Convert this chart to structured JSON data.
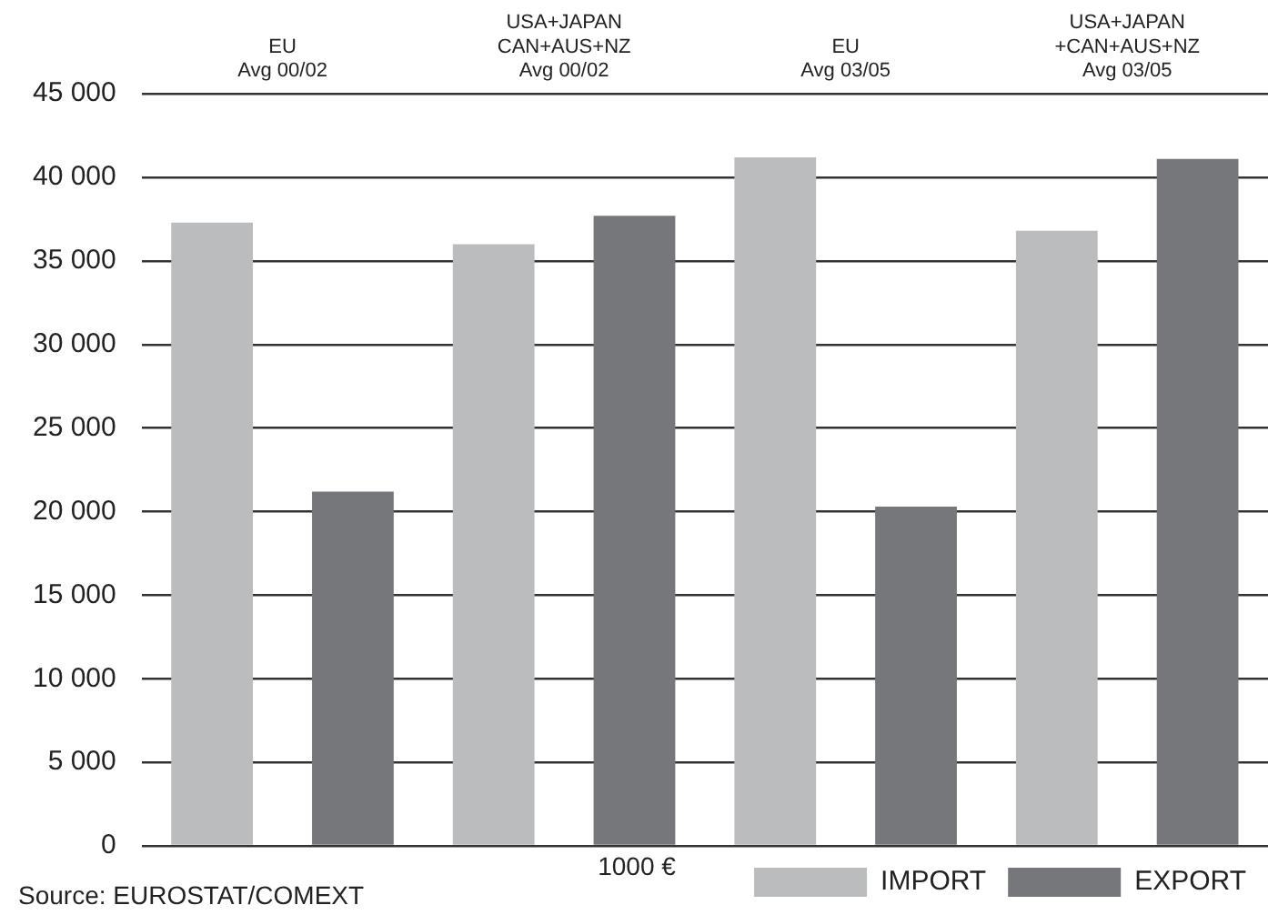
{
  "chart_data": {
    "type": "bar",
    "categories": [
      "EU\nAvg 00/02",
      "USA+JAPAN\nCAN+AUS+NZ\nAvg 00/02",
      "EU\nAvg 03/05",
      "USA+JAPAN\n+CAN+AUS+NZ\nAvg 03/05"
    ],
    "series": [
      {
        "name": "IMPORT",
        "color": "#bbbcbe",
        "values": [
          37300,
          36000,
          41200,
          36800
        ]
      },
      {
        "name": "EXPORT",
        "color": "#76777b",
        "values": [
          21200,
          37700,
          20300,
          41100
        ]
      }
    ],
    "ylim": [
      0,
      45000
    ],
    "yticks": [
      {
        "value": 0,
        "label": "0"
      },
      {
        "value": 5000,
        "label": "5 000"
      },
      {
        "value": 10000,
        "label": "10 000"
      },
      {
        "value": 15000,
        "label": "15 000"
      },
      {
        "value": 20000,
        "label": "20 000"
      },
      {
        "value": 25000,
        "label": "25 000"
      },
      {
        "value": 30000,
        "label": "30 000"
      },
      {
        "value": 35000,
        "label": "35 000"
      },
      {
        "value": 40000,
        "label": "40 000"
      },
      {
        "value": 45000,
        "label": "45 000"
      }
    ],
    "grid": "y",
    "legend": "bottom right",
    "annotations": [
      "Source: EUROSTAT/COMEXT",
      "1000 €"
    ]
  }
}
